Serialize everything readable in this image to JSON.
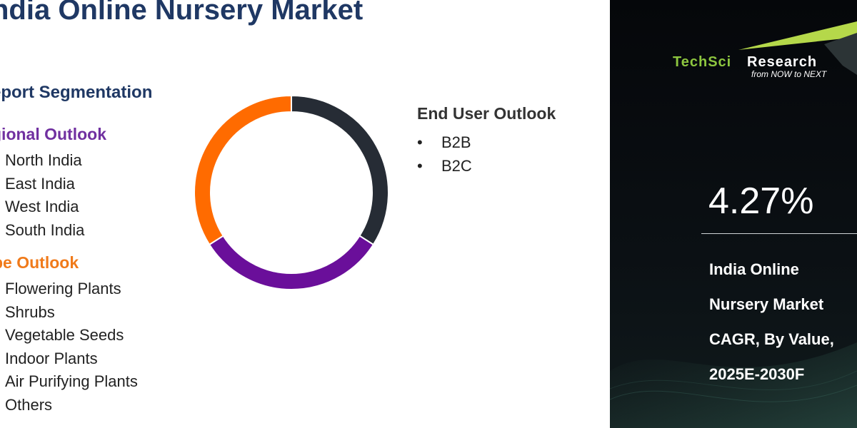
{
  "title": "ndia Online Nursery Market",
  "segmentation_title": "eport Segmentation",
  "regional": {
    "title": "gional Outlook",
    "items": [
      "North India",
      "East India",
      "West India",
      "South India"
    ]
  },
  "type": {
    "title": "pe Outlook",
    "items": [
      "Flowering Plants",
      "Shrubs",
      "Vegetable Seeds",
      "Indoor Plants",
      "Air Purifying Plants",
      "Others"
    ]
  },
  "end_user": {
    "title": "End User Outlook",
    "bullet": "•",
    "items": [
      "B2B",
      "B2C"
    ]
  },
  "chart_data": {
    "type": "pie",
    "donut": true,
    "values": [
      34,
      32,
      34
    ],
    "colors": [
      "#262c35",
      "#6a0f9a",
      "#ff6b00"
    ],
    "start_angle_deg": 0
  },
  "logo": {
    "tech": "TechSci",
    "research": "Research",
    "tagline": "from NOW to NEXT"
  },
  "cagr": {
    "value": "4.27%",
    "lines": [
      "India Online",
      "Nursery Market",
      "CAGR, By Value,",
      "2025E-2030F"
    ]
  },
  "colors": {
    "title": "#1f3864",
    "regional": "#7030a0",
    "type": "#f07a1a",
    "brand_green": "#8dc63f",
    "panel": "#0b1014"
  }
}
